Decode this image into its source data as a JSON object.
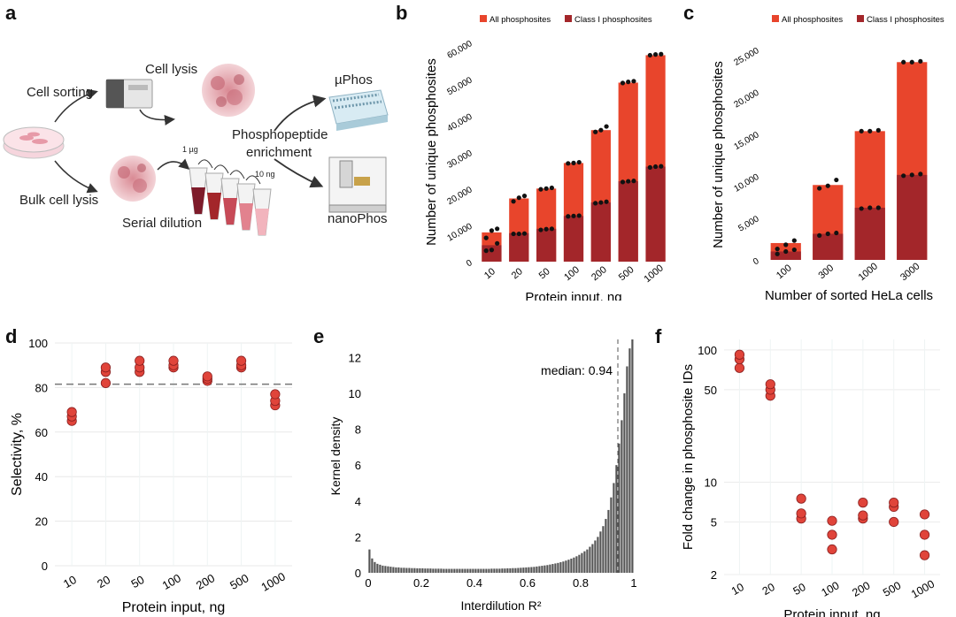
{
  "colors": {
    "all": "#e8452c",
    "class1": "#a3262a",
    "dot": "#111111",
    "red_point": "#e0443a",
    "bar_gray": "#555555"
  },
  "panels": {
    "a": {
      "letter": "a",
      "labels": {
        "cell_sorting": "Cell sorting",
        "cell_lysis": "Cell lysis",
        "bulk_cell_lysis": "Bulk cell lysis",
        "serial_dilution": "Serial dilution",
        "top_amount": "1 µg",
        "bottom_amount": "10 ng",
        "phospho_enrich_1": "Phosphopeptide",
        "phospho_enrich_2": "enrichment",
        "muphos": "µPhos",
        "nanophos": "nanoPhos"
      }
    },
    "b": {
      "letter": "b"
    },
    "c": {
      "letter": "c"
    },
    "d": {
      "letter": "d"
    },
    "e": {
      "letter": "e"
    },
    "f": {
      "letter": "f"
    }
  },
  "chart_data": [
    {
      "id": "b",
      "type": "bar",
      "xlabel": "Protein input, ng",
      "ylabel": "Number of unique phosphosites",
      "categories": [
        "10",
        "20",
        "50",
        "100",
        "200",
        "500",
        "1000"
      ],
      "ylim": [
        0,
        60000
      ],
      "yticks": [
        "0",
        "10,000",
        "20,000",
        "30,000",
        "40,000",
        "50,000",
        "60,000"
      ],
      "legend": [
        "All phosphosites",
        "Class I phosphosites"
      ],
      "series": [
        {
          "name": "All phosphosites",
          "values": [
            8000,
            17300,
            20000,
            27000,
            36000,
            49000,
            56500
          ],
          "replicates": [
            [
              6500,
              8500,
              9000
            ],
            [
              16500,
              17500,
              18000
            ],
            [
              19800,
              20000,
              20200
            ],
            [
              26900,
              27000,
              27200
            ],
            [
              35500,
              36000,
              37000
            ],
            [
              48900,
              49200,
              49400
            ],
            [
              56500,
              56700,
              56800
            ]
          ]
        },
        {
          "name": "Class I phosphosites",
          "values": [
            4500,
            7800,
            9000,
            12500,
            16200,
            22000,
            26000
          ],
          "replicates": [
            [
              3000,
              3200,
              5000
            ],
            [
              7600,
              7600,
              7700
            ],
            [
              8700,
              8900,
              9000
            ],
            [
              12400,
              12500,
              12600
            ],
            [
              16000,
              16200,
              16400
            ],
            [
              21800,
              22000,
              22100
            ],
            [
              25800,
              26000,
              26100
            ]
          ]
        }
      ]
    },
    {
      "id": "c",
      "type": "bar",
      "xlabel": "Number of sorted HeLa cells",
      "ylabel": "Number of unique phosphosites",
      "categories": [
        "100",
        "300",
        "1000",
        "3000"
      ],
      "ylim": [
        0,
        25000
      ],
      "yticks": [
        "0",
        "5,000",
        "10,000",
        "15,000",
        "20,000",
        "25,000"
      ],
      "legend": [
        "All phosphosites",
        "Class I phosphosites"
      ],
      "series": [
        {
          "name": "All phosphosites",
          "values": [
            2000,
            8900,
            15300,
            23500
          ],
          "replicates": [
            [
              1300,
              1800,
              2300
            ],
            [
              8500,
              8800,
              9500
            ],
            [
              15300,
              15300,
              15400
            ],
            [
              23500,
              23500,
              23600
            ]
          ]
        },
        {
          "name": "Class I phosphosites",
          "values": [
            1000,
            3100,
            6200,
            10100
          ],
          "replicates": [
            [
              700,
              1000,
              1200
            ],
            [
              2900,
              3100,
              3200
            ],
            [
              6100,
              6200,
              6200
            ],
            [
              10000,
              10100,
              10200
            ]
          ]
        }
      ]
    },
    {
      "id": "d",
      "type": "scatter",
      "xlabel": "Protein input, ng",
      "ylabel": "Selectivity, %",
      "categories": [
        "10",
        "20",
        "50",
        "100",
        "200",
        "500",
        "1000"
      ],
      "ylim": [
        0,
        100
      ],
      "yticks": [
        "0",
        "20",
        "40",
        "60",
        "80",
        "100"
      ],
      "reference_line": 81.5,
      "points": [
        [
          65,
          67,
          69
        ],
        [
          82,
          87,
          89
        ],
        [
          87,
          89,
          92
        ],
        [
          89,
          90,
          92
        ],
        [
          83,
          84,
          85
        ],
        [
          89,
          90,
          92
        ],
        [
          72,
          74,
          77
        ]
      ]
    },
    {
      "id": "e",
      "type": "bar",
      "xlabel": "Interdilution R²",
      "ylabel": "Kernel density",
      "xlim": [
        0,
        1
      ],
      "ylim": [
        0,
        13
      ],
      "xticks": [
        "0",
        "0.2",
        "0.4",
        "0.6",
        "0.8",
        "1"
      ],
      "yticks": [
        "0",
        "2",
        "4",
        "6",
        "8",
        "10",
        "12"
      ],
      "annotation": "median: 0.94",
      "median": 0.94,
      "bins": 100,
      "values": [
        1.3,
        0.8,
        0.6,
        0.5,
        0.45,
        0.4,
        0.38,
        0.36,
        0.34,
        0.32,
        0.3,
        0.3,
        0.28,
        0.28,
        0.27,
        0.27,
        0.26,
        0.26,
        0.25,
        0.25,
        0.25,
        0.24,
        0.24,
        0.24,
        0.23,
        0.23,
        0.23,
        0.23,
        0.22,
        0.22,
        0.22,
        0.22,
        0.22,
        0.22,
        0.22,
        0.22,
        0.22,
        0.22,
        0.22,
        0.22,
        0.22,
        0.22,
        0.22,
        0.22,
        0.22,
        0.22,
        0.23,
        0.23,
        0.23,
        0.23,
        0.24,
        0.24,
        0.25,
        0.25,
        0.26,
        0.26,
        0.27,
        0.28,
        0.29,
        0.3,
        0.31,
        0.32,
        0.33,
        0.35,
        0.37,
        0.39,
        0.41,
        0.43,
        0.46,
        0.49,
        0.52,
        0.55,
        0.59,
        0.63,
        0.68,
        0.73,
        0.79,
        0.85,
        0.92,
        1.0,
        1.1,
        1.2,
        1.3,
        1.45,
        1.6,
        1.8,
        2.0,
        2.3,
        2.6,
        3.0,
        3.5,
        4.2,
        5.0,
        6.0,
        7.2,
        8.5,
        10.0,
        11.5,
        12.5,
        13.0
      ]
    },
    {
      "id": "f",
      "type": "scatter",
      "xlabel": "Protein input, ng",
      "ylabel": "Fold change in phosphosite IDs",
      "categories": [
        "10",
        "20",
        "50",
        "100",
        "200",
        "500",
        "1000"
      ],
      "yscale": "log",
      "ylim": [
        2,
        120
      ],
      "yticks": [
        "2",
        "5",
        "10",
        "50",
        "100"
      ],
      "points": [
        [
          73,
          85,
          92
        ],
        [
          45,
          50,
          55
        ],
        [
          5.3,
          5.8,
          7.5
        ],
        [
          3.1,
          4.0,
          5.1
        ],
        [
          5.3,
          5.6,
          7.0
        ],
        [
          5.0,
          6.5,
          7.0
        ],
        [
          2.8,
          4.0,
          5.7
        ]
      ]
    }
  ]
}
